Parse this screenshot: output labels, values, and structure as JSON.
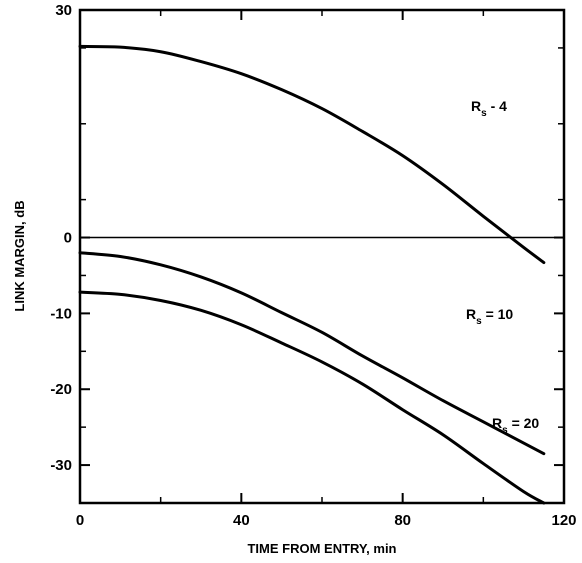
{
  "chart_data": {
    "type": "line",
    "title": "",
    "xlabel": "TIME FROM ENTRY, min",
    "ylabel": "LINK MARGIN, dB",
    "xlim": [
      0,
      120
    ],
    "ylim": [
      -35,
      30
    ],
    "xticks": [
      0,
      40,
      80,
      120
    ],
    "yticks": [
      30,
      0,
      -10,
      -20,
      -30
    ],
    "xtick_labels": [
      "0",
      "40",
      "80",
      "120"
    ],
    "ytick_labels": [
      "30",
      "0",
      "-10",
      "-20",
      "-30"
    ],
    "grid": false,
    "reference_lines": [
      {
        "y": 0
      }
    ],
    "series": [
      {
        "name": "R s - 4",
        "label_main": "R",
        "label_sub": "s",
        "label_rest": " - 4",
        "x": [
          0,
          10,
          20,
          30,
          40,
          50,
          60,
          70,
          80,
          90,
          100,
          110,
          115
        ],
        "y": [
          25.2,
          25.1,
          24.5,
          23.2,
          21.6,
          19.5,
          17.0,
          14.0,
          10.8,
          7.0,
          2.8,
          -1.3,
          -3.3
        ]
      },
      {
        "name": "R s = 10",
        "label_main": "R",
        "label_sub": "s",
        "label_rest": " = 10",
        "x": [
          0,
          10,
          20,
          30,
          40,
          50,
          60,
          70,
          80,
          90,
          100,
          110,
          115
        ],
        "y": [
          -2.0,
          -2.5,
          -3.6,
          -5.2,
          -7.3,
          -9.9,
          -12.5,
          -15.6,
          -18.5,
          -21.5,
          -24.3,
          -27.1,
          -28.5
        ]
      },
      {
        "name": "R s = 20",
        "label_main": "R",
        "label_sub": "s",
        "label_rest": " = 20",
        "x": [
          0,
          10,
          20,
          30,
          40,
          50,
          60,
          70,
          80,
          90,
          100,
          110,
          115
        ],
        "y": [
          -7.2,
          -7.5,
          -8.3,
          -9.6,
          -11.5,
          -13.9,
          -16.4,
          -19.3,
          -22.7,
          -26.0,
          -29.8,
          -33.5,
          -35.5
        ]
      }
    ]
  }
}
